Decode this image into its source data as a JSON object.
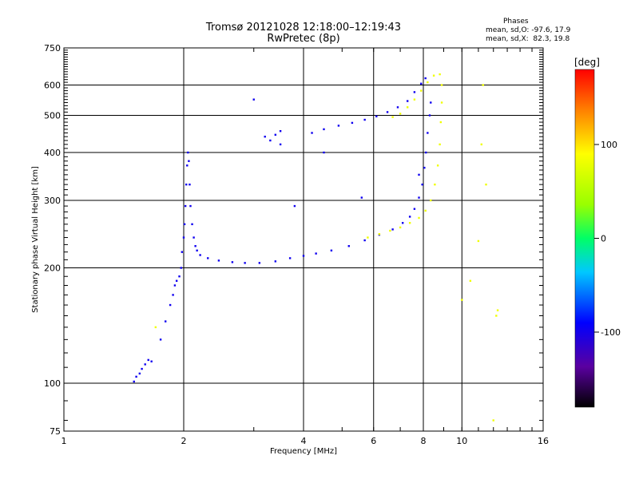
{
  "header": {
    "title": "Tromsø 20121028 12:18:00–12:19:43",
    "subtitle": "RwPretec (8p)"
  },
  "phase_box": {
    "title": "Phases",
    "line_o": "mean, sd,O: -97.6, 17.9",
    "line_x": "mean, sd,X:  82.3, 19.8"
  },
  "colorbar": {
    "unit": "[deg]",
    "ticks": [
      {
        "value": 100,
        "label": "100"
      },
      {
        "value": 0,
        "label": "0"
      },
      {
        "value": -100,
        "label": "-100"
      }
    ],
    "range": [
      -180,
      180
    ],
    "colors": [
      "#000000",
      "#5a00a0",
      "#0000ff",
      "#00c8ff",
      "#00ff66",
      "#99ff00",
      "#ffff00",
      "#ff8000",
      "#ff0000"
    ]
  },
  "chart_data": {
    "type": "scatter",
    "title": "Tromsø 20121028 12:18:00–12:19:43",
    "subtitle": "RwPretec (8p)",
    "xlabel": "Frequency [MHz]",
    "ylabel": "Stationary phase Virtual Height [km]",
    "xscale": "log",
    "yscale": "log",
    "xlim": [
      1,
      16
    ],
    "ylim": [
      75,
      750
    ],
    "grid": true,
    "x_ticks": [
      {
        "value": 1,
        "label": "1"
      },
      {
        "value": 2,
        "label": "2"
      },
      {
        "value": 4,
        "label": "4"
      },
      {
        "value": 6,
        "label": "6"
      },
      {
        "value": 8,
        "label": "8"
      },
      {
        "value": 10,
        "label": "10"
      },
      {
        "value": 16,
        "label": "16"
      }
    ],
    "y_ticks": [
      {
        "value": 75,
        "label": "75"
      },
      {
        "value": 100,
        "label": "100"
      },
      {
        "value": 200,
        "label": "200"
      },
      {
        "value": 300,
        "label": "300"
      },
      {
        "value": 400,
        "label": "400"
      },
      {
        "value": 500,
        "label": "500"
      },
      {
        "value": 600,
        "label": "600"
      },
      {
        "value": 750,
        "label": "750"
      }
    ],
    "series": [
      {
        "name": "O",
        "phase_deg": -97.6,
        "points": [
          [
            1.5,
            101
          ],
          [
            1.52,
            104
          ],
          [
            1.55,
            106
          ],
          [
            1.57,
            109
          ],
          [
            1.6,
            112
          ],
          [
            1.63,
            115
          ],
          [
            1.66,
            114
          ],
          [
            1.75,
            130
          ],
          [
            1.8,
            145
          ],
          [
            1.85,
            160
          ],
          [
            1.88,
            170
          ],
          [
            1.9,
            180
          ],
          [
            1.92,
            185
          ],
          [
            1.95,
            190
          ],
          [
            1.97,
            200
          ],
          [
            1.98,
            220
          ],
          [
            2.0,
            240
          ],
          [
            2.01,
            260
          ],
          [
            2.02,
            290
          ],
          [
            2.03,
            330
          ],
          [
            2.04,
            370
          ],
          [
            2.05,
            400
          ],
          [
            2.06,
            380
          ],
          [
            2.07,
            330
          ],
          [
            2.08,
            290
          ],
          [
            2.1,
            260
          ],
          [
            2.12,
            240
          ],
          [
            2.14,
            228
          ],
          [
            2.16,
            222
          ],
          [
            2.2,
            216
          ],
          [
            2.3,
            212
          ],
          [
            2.45,
            209
          ],
          [
            2.65,
            207
          ],
          [
            2.85,
            206
          ],
          [
            3.1,
            206
          ],
          [
            3.4,
            208
          ],
          [
            3.7,
            212
          ],
          [
            4.0,
            215
          ],
          [
            4.3,
            218
          ],
          [
            4.7,
            222
          ],
          [
            5.2,
            228
          ],
          [
            5.7,
            236
          ],
          [
            6.2,
            244
          ],
          [
            6.7,
            252
          ],
          [
            7.1,
            262
          ],
          [
            7.4,
            272
          ],
          [
            7.6,
            285
          ],
          [
            7.8,
            305
          ],
          [
            7.95,
            330
          ],
          [
            8.05,
            365
          ],
          [
            8.12,
            400
          ],
          [
            8.2,
            450
          ],
          [
            8.3,
            500
          ],
          [
            8.35,
            540
          ],
          [
            3.3,
            430
          ],
          [
            3.4,
            445
          ],
          [
            3.5,
            455
          ],
          [
            3.2,
            440
          ],
          [
            3.5,
            420
          ],
          [
            4.2,
            450
          ],
          [
            4.5,
            460
          ],
          [
            4.9,
            470
          ],
          [
            5.3,
            478
          ],
          [
            5.7,
            487
          ],
          [
            6.1,
            497
          ],
          [
            6.5,
            510
          ],
          [
            6.9,
            525
          ],
          [
            7.3,
            545
          ],
          [
            7.6,
            575
          ],
          [
            7.9,
            605
          ],
          [
            8.1,
            625
          ],
          [
            3.0,
            550
          ],
          [
            4.5,
            400
          ],
          [
            5.6,
            305
          ],
          [
            3.8,
            290
          ],
          [
            7.8,
            350
          ]
        ]
      },
      {
        "name": "X",
        "phase_deg": 82.3,
        "points": [
          [
            5.8,
            240
          ],
          [
            6.2,
            245
          ],
          [
            6.6,
            250
          ],
          [
            7.0,
            255
          ],
          [
            7.4,
            262
          ],
          [
            7.8,
            270
          ],
          [
            8.1,
            282
          ],
          [
            8.35,
            300
          ],
          [
            8.55,
            330
          ],
          [
            8.7,
            370
          ],
          [
            8.8,
            420
          ],
          [
            8.85,
            480
          ],
          [
            8.9,
            540
          ],
          [
            8.9,
            600
          ],
          [
            8.8,
            640
          ],
          [
            6.7,
            495
          ],
          [
            7.0,
            505
          ],
          [
            7.3,
            525
          ],
          [
            7.6,
            550
          ],
          [
            7.9,
            580
          ],
          [
            8.2,
            610
          ],
          [
            8.5,
            635
          ],
          [
            1.7,
            140
          ],
          [
            10.5,
            185
          ],
          [
            10.0,
            165
          ],
          [
            11.0,
            235
          ],
          [
            12.0,
            80
          ],
          [
            12.2,
            150
          ],
          [
            12.3,
            155
          ],
          [
            11.2,
            420
          ],
          [
            11.5,
            330
          ],
          [
            11.3,
            600
          ]
        ]
      }
    ]
  }
}
